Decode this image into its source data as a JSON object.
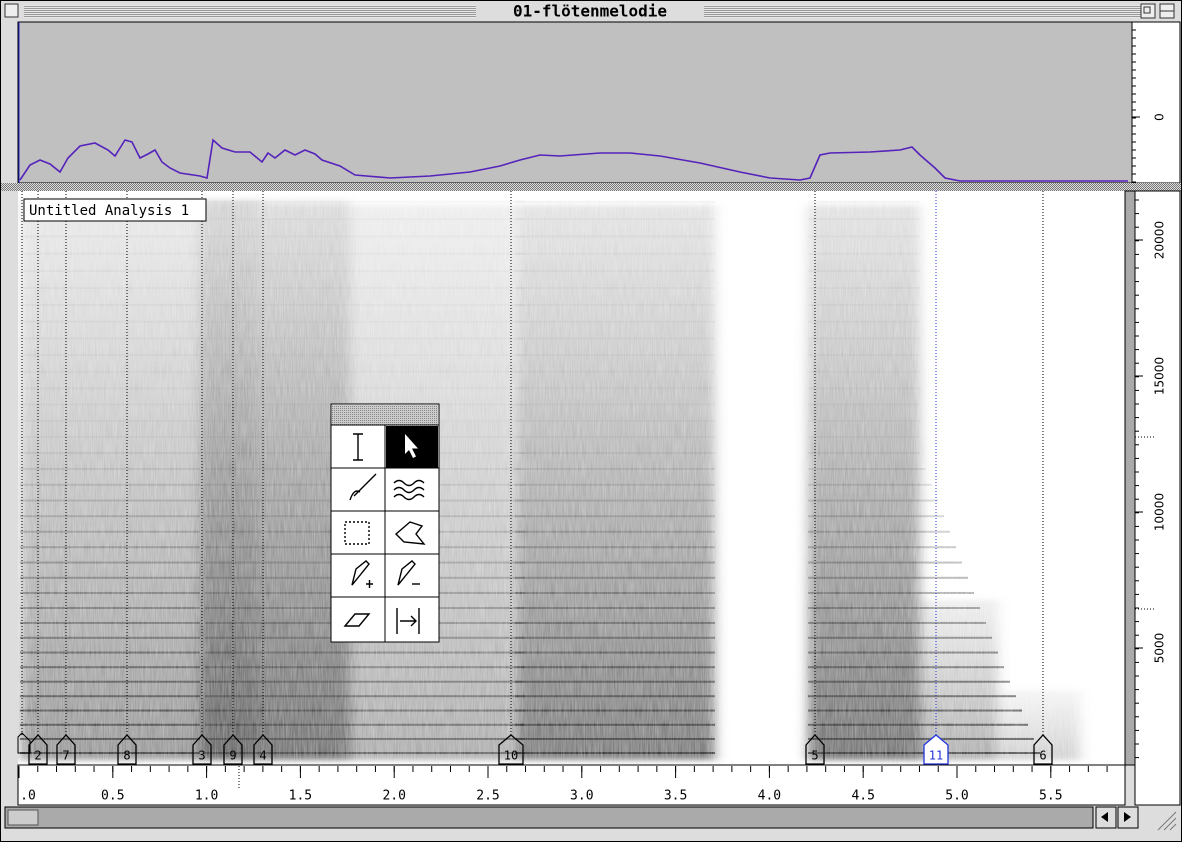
{
  "window": {
    "title": "01-flötenmelodie"
  },
  "analysis_label": "Untitled Analysis 1",
  "amplitude_axis": {
    "ticks": [
      "0"
    ]
  },
  "frequency_axis": {
    "ticks": [
      "5000",
      "10000",
      "15000",
      "20000"
    ]
  },
  "time_axis": {
    "ticks": [
      ".0",
      "0.5",
      "1.0",
      "1.5",
      "2.0",
      "2.5",
      "3.0",
      "3.5",
      "4.0",
      "4.5",
      "5.0",
      "5.5"
    ]
  },
  "markers": [
    {
      "label": "2"
    },
    {
      "label": "7"
    },
    {
      "label": "8"
    },
    {
      "label": "3"
    },
    {
      "label": "9"
    },
    {
      "label": "4"
    },
    {
      "label": "10"
    },
    {
      "label": "5"
    },
    {
      "label": "11"
    },
    {
      "label": "6"
    }
  ]
}
